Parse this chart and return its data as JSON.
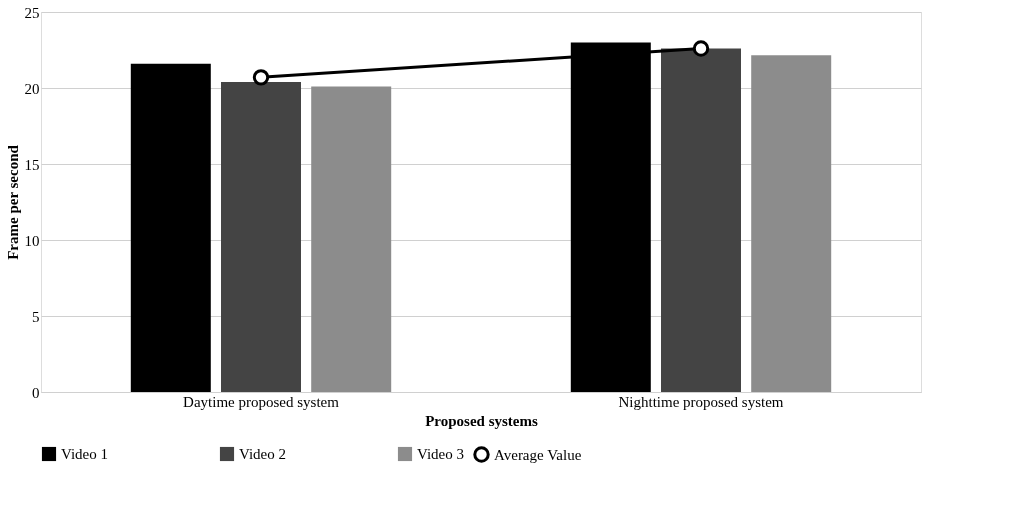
{
  "chart_data": {
    "type": "bar",
    "xlabel": "Proposed systems",
    "ylabel": "Frame  per second",
    "categories": [
      "Daytime proposed system",
      "Nighttime proposed system"
    ],
    "series": [
      {
        "name": "Video 1",
        "color": "#000000",
        "values": [
          21.6,
          23.0
        ]
      },
      {
        "name": "Video 2",
        "color": "#444444",
        "values": [
          20.4,
          22.6
        ]
      },
      {
        "name": "Video 3",
        "color": "#8c8c8c",
        "values": [
          20.1,
          22.15
        ]
      },
      {
        "name": "Average Value",
        "type": "line",
        "color": "#000000",
        "marker": "circle",
        "values": [
          20.7,
          22.6
        ]
      }
    ],
    "ylim": [
      0,
      25
    ],
    "yticks": [
      0,
      5,
      10,
      15,
      20,
      25
    ],
    "grid": "y",
    "legend": "bottom"
  }
}
